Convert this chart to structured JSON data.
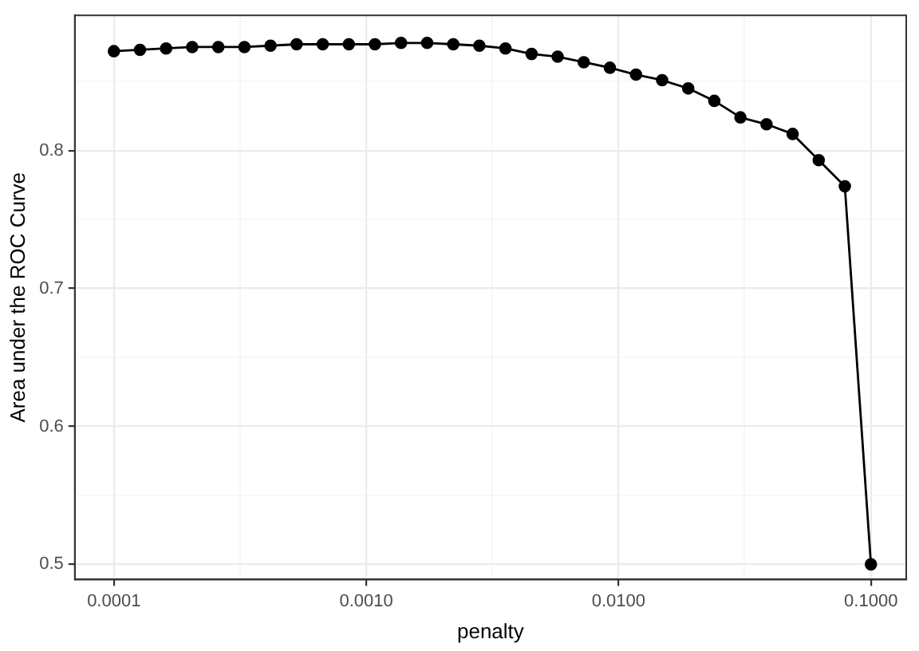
{
  "chart_data": {
    "type": "line",
    "xlabel": "penalty",
    "ylabel": "Area under the ROC Curve",
    "x": [
      0.0001,
      0.0001269,
      0.000161,
      0.0002043,
      0.0002593,
      0.000329,
      0.0004175,
      0.0005298,
      0.0006723,
      0.0008532,
      0.0010826,
      0.0013738,
      0.0017433,
      0.0022122,
      0.0028072,
      0.0035622,
      0.0045204,
      0.005736,
      0.007279,
      0.009237,
      0.011721,
      0.014874,
      0.018874,
      0.02395,
      0.030392,
      0.038566,
      0.048939,
      0.062102,
      0.078805,
      0.1
    ],
    "series": [
      {
        "color": "#000000",
        "values": [
          0.872,
          0.873,
          0.874,
          0.875,
          0.875,
          0.875,
          0.876,
          0.877,
          0.877,
          0.877,
          0.877,
          0.878,
          0.878,
          0.877,
          0.876,
          0.874,
          0.87,
          0.868,
          0.864,
          0.86,
          0.855,
          0.851,
          0.845,
          0.836,
          0.824,
          0.819,
          0.812,
          0.793,
          0.774,
          0.5
        ]
      }
    ],
    "log": "x",
    "xlim": [
      7.05e-05,
      0.138
    ],
    "ylim": [
      0.489,
      0.898
    ],
    "xticks": [
      {
        "value": 0.0001,
        "label": "0.0001"
      },
      {
        "value": 0.000316,
        "label": null
      },
      {
        "value": 0.001,
        "label": "0.0010"
      },
      {
        "value": 0.00316,
        "label": null
      },
      {
        "value": 0.01,
        "label": "0.0100"
      },
      {
        "value": 0.0316,
        "label": null
      },
      {
        "value": 0.1,
        "label": "0.1000"
      }
    ],
    "yticks": [
      0.5,
      {
        "value": 0.55,
        "label": null
      },
      0.6,
      {
        "value": 0.65,
        "label": null
      },
      0.7,
      {
        "value": 0.75,
        "label": null
      },
      0.8,
      {
        "value": 0.85,
        "label": null
      }
    ],
    "grid": true,
    "marker": "circle",
    "line_style": "solid",
    "legend": false
  }
}
